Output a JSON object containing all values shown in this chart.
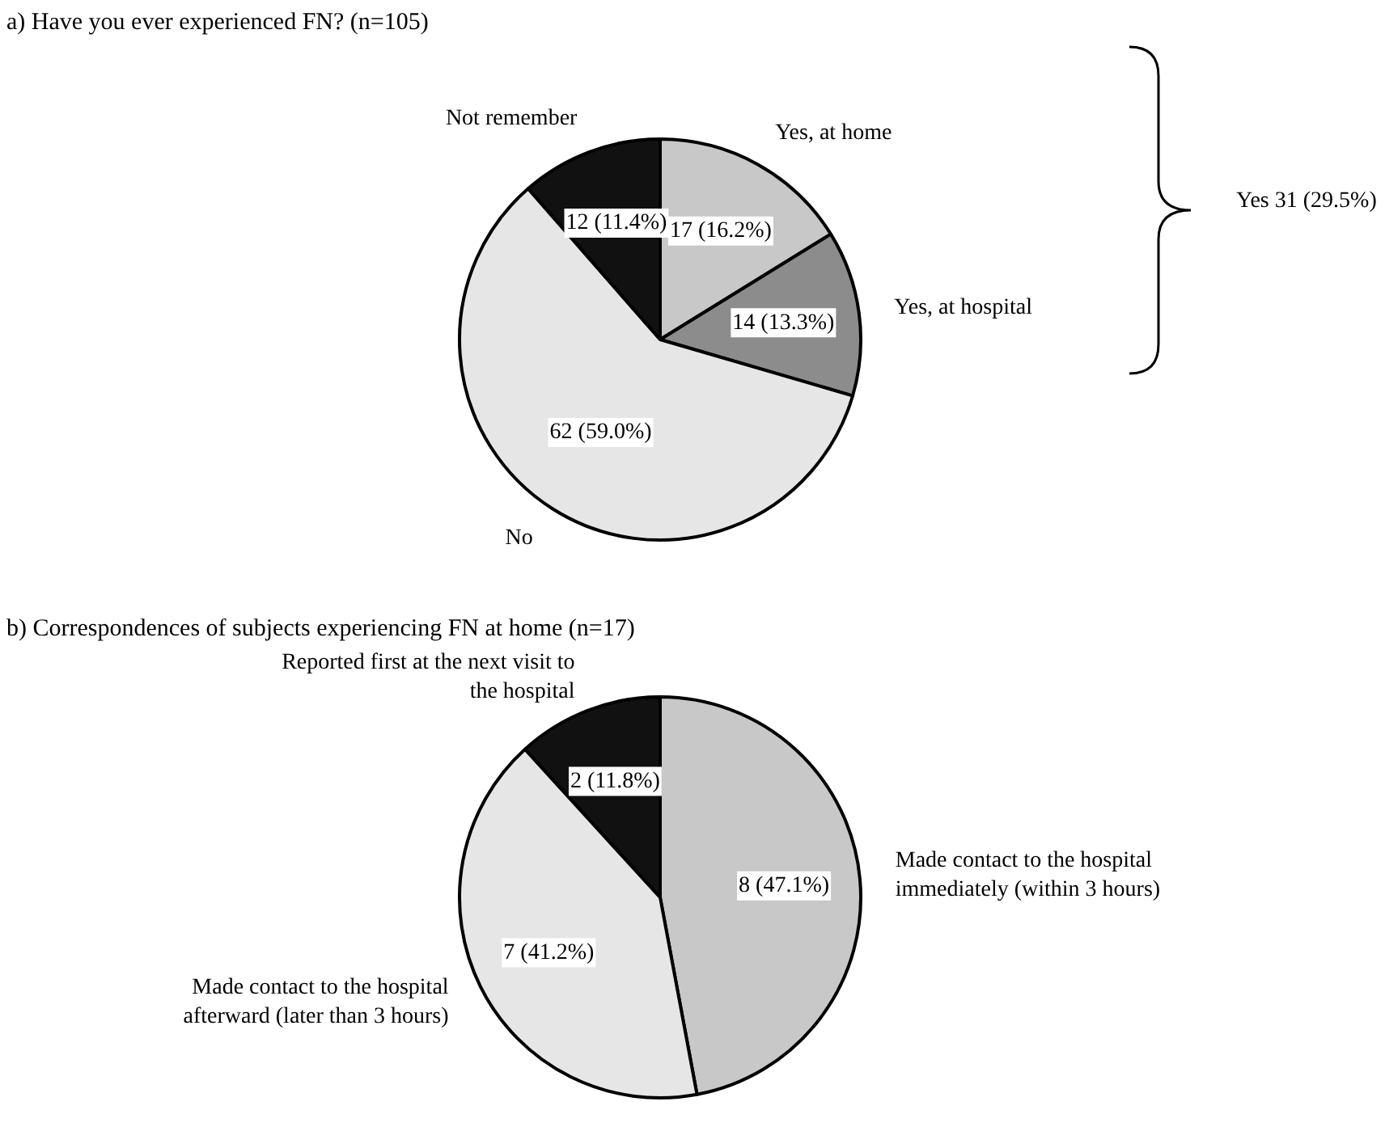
{
  "chart_data": [
    {
      "type": "pie",
      "title": "a) Have you ever experienced FN? (n=105)",
      "categories": [
        "Yes, at home",
        "Yes, at hospital",
        "No",
        "Not remember"
      ],
      "values": [
        17,
        14,
        62,
        12
      ],
      "value_labels": [
        "17 (16.2%)",
        "14 (13.3%)",
        "62 (59.0%)",
        "12 (11.4%)"
      ],
      "colors": [
        "#c8c8c8",
        "#8c8c8c",
        "#e6e6e6",
        "#111111"
      ],
      "annotations": [
        "Yes 31 (29.5%)"
      ],
      "legend": false
    },
    {
      "type": "pie",
      "title": "b) Correspondences of subjects experiencing FN at home (n=17)",
      "categories": [
        "Made contact to the hospital immediately (within 3 hours)",
        "Made contact to the hospital afterward (later than 3 hours)",
        "Reported first at the next visit to the hospital"
      ],
      "values": [
        8,
        7,
        2
      ],
      "value_labels": [
        "8 (47.1%)",
        "7 (41.2%)",
        "2 (11.8%)"
      ],
      "colors": [
        "#c8c8c8",
        "#e6e6e6",
        "#111111"
      ],
      "legend": false
    }
  ]
}
